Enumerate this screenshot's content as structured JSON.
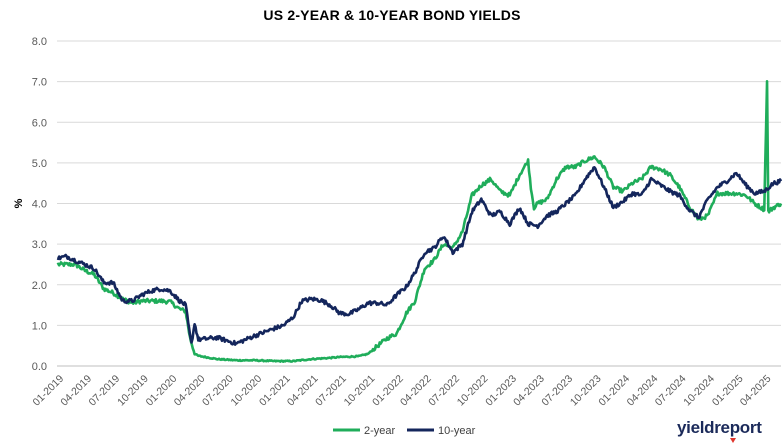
{
  "chart_data": {
    "type": "line",
    "title": "US 2-YEAR & 10-YEAR BOND YIELDS",
    "xlabel": "",
    "ylabel": "%",
    "ylim": [
      0,
      8
    ],
    "y_ticks": [
      "0.0",
      "1.0",
      "2.0",
      "3.0",
      "4.0",
      "5.0",
      "6.0",
      "7.0",
      "8.0"
    ],
    "x_ticks": [
      "01-2019",
      "04-2019",
      "07-2019",
      "10-2019",
      "01-2020",
      "04-2020",
      "07-2020",
      "10-2020",
      "01-2021",
      "04-2021",
      "07-2021",
      "10-2021",
      "01-2022",
      "04-2022",
      "07-2022",
      "10-2022",
      "01-2023",
      "04-2023",
      "07-2023",
      "10-2023",
      "01-2024",
      "04-2024",
      "07-2024",
      "10-2024",
      "01-2025",
      "04-2025"
    ],
    "x_range": [
      "2019-01",
      "2025-05"
    ],
    "grid": "horizontal",
    "legend_position": "bottom-center",
    "series": [
      {
        "name": "2-year",
        "color": "#1fad5a",
        "points": [
          [
            "2019-01-02",
            2.5
          ],
          [
            "2019-02-01",
            2.5
          ],
          [
            "2019-03-01",
            2.5
          ],
          [
            "2019-04-01",
            2.35
          ],
          [
            "2019-05-01",
            2.25
          ],
          [
            "2019-06-01",
            1.9
          ],
          [
            "2019-07-01",
            1.8
          ],
          [
            "2019-08-01",
            1.65
          ],
          [
            "2019-09-01",
            1.55
          ],
          [
            "2019-10-01",
            1.6
          ],
          [
            "2019-11-01",
            1.6
          ],
          [
            "2019-12-01",
            1.6
          ],
          [
            "2020-01-01",
            1.58
          ],
          [
            "2020-02-01",
            1.4
          ],
          [
            "2020-02-20",
            1.35
          ],
          [
            "2020-03-05",
            0.7
          ],
          [
            "2020-03-20",
            0.3
          ],
          [
            "2020-04-01",
            0.25
          ],
          [
            "2020-06-01",
            0.17
          ],
          [
            "2020-08-01",
            0.14
          ],
          [
            "2020-10-01",
            0.14
          ],
          [
            "2020-12-01",
            0.12
          ],
          [
            "2021-02-01",
            0.12
          ],
          [
            "2021-04-01",
            0.17
          ],
          [
            "2021-06-01",
            0.2
          ],
          [
            "2021-07-01",
            0.22
          ],
          [
            "2021-09-01",
            0.24
          ],
          [
            "2021-10-01",
            0.3
          ],
          [
            "2021-11-01",
            0.5
          ],
          [
            "2021-12-01",
            0.68
          ],
          [
            "2022-01-01",
            0.8
          ],
          [
            "2022-02-01",
            1.3
          ],
          [
            "2022-03-01",
            1.6
          ],
          [
            "2022-04-01",
            2.4
          ],
          [
            "2022-05-01",
            2.6
          ],
          [
            "2022-06-01",
            3.0
          ],
          [
            "2022-07-01",
            2.9
          ],
          [
            "2022-08-01",
            3.3
          ],
          [
            "2022-09-01",
            4.2
          ],
          [
            "2022-10-01",
            4.45
          ],
          [
            "2022-11-01",
            4.6
          ],
          [
            "2022-12-01",
            4.3
          ],
          [
            "2023-01-01",
            4.2
          ],
          [
            "2023-02-01",
            4.7
          ],
          [
            "2023-03-01",
            5.05
          ],
          [
            "2023-03-10",
            4.4
          ],
          [
            "2023-03-20",
            3.9
          ],
          [
            "2023-04-01",
            4.0
          ],
          [
            "2023-05-01",
            4.1
          ],
          [
            "2023-06-01",
            4.6
          ],
          [
            "2023-07-01",
            4.9
          ],
          [
            "2023-08-01",
            4.9
          ],
          [
            "2023-09-01",
            5.05
          ],
          [
            "2023-10-01",
            5.15
          ],
          [
            "2023-11-01",
            4.9
          ],
          [
            "2023-12-01",
            4.4
          ],
          [
            "2024-01-01",
            4.3
          ],
          [
            "2024-02-01",
            4.5
          ],
          [
            "2024-03-01",
            4.6
          ],
          [
            "2024-04-01",
            4.9
          ],
          [
            "2024-05-01",
            4.85
          ],
          [
            "2024-06-01",
            4.7
          ],
          [
            "2024-07-01",
            4.4
          ],
          [
            "2024-08-01",
            3.95
          ],
          [
            "2024-09-01",
            3.6
          ],
          [
            "2024-10-01",
            3.7
          ],
          [
            "2024-11-01",
            4.25
          ],
          [
            "2024-12-01",
            4.25
          ],
          [
            "2025-01-01",
            4.25
          ],
          [
            "2025-02-01",
            4.2
          ],
          [
            "2025-03-01",
            4.0
          ],
          [
            "2025-04-01",
            3.85
          ],
          [
            "2025-04-10",
            7.0
          ],
          [
            "2025-04-14",
            3.8
          ],
          [
            "2025-05-01",
            3.9
          ],
          [
            "2025-05-25",
            4.0
          ]
        ]
      },
      {
        "name": "10-year",
        "color": "#14265c",
        "points": [
          [
            "2019-01-02",
            2.65
          ],
          [
            "2019-02-01",
            2.7
          ],
          [
            "2019-03-01",
            2.6
          ],
          [
            "2019-04-01",
            2.5
          ],
          [
            "2019-05-01",
            2.4
          ],
          [
            "2019-06-01",
            2.05
          ],
          [
            "2019-07-01",
            2.05
          ],
          [
            "2019-08-01",
            1.6
          ],
          [
            "2019-09-01",
            1.6
          ],
          [
            "2019-10-01",
            1.75
          ],
          [
            "2019-11-01",
            1.85
          ],
          [
            "2019-12-01",
            1.9
          ],
          [
            "2020-01-01",
            1.85
          ],
          [
            "2020-02-01",
            1.6
          ],
          [
            "2020-02-20",
            1.5
          ],
          [
            "2020-03-05",
            0.75
          ],
          [
            "2020-03-10",
            0.55
          ],
          [
            "2020-03-20",
            1.05
          ],
          [
            "2020-04-01",
            0.65
          ],
          [
            "2020-06-01",
            0.7
          ],
          [
            "2020-08-01",
            0.55
          ],
          [
            "2020-10-01",
            0.75
          ],
          [
            "2020-12-01",
            0.92
          ],
          [
            "2021-01-01",
            1.0
          ],
          [
            "2021-02-01",
            1.2
          ],
          [
            "2021-03-01",
            1.6
          ],
          [
            "2021-04-01",
            1.65
          ],
          [
            "2021-05-01",
            1.62
          ],
          [
            "2021-06-01",
            1.5
          ],
          [
            "2021-07-01",
            1.3
          ],
          [
            "2021-08-01",
            1.28
          ],
          [
            "2021-09-01",
            1.4
          ],
          [
            "2021-10-01",
            1.55
          ],
          [
            "2021-11-01",
            1.55
          ],
          [
            "2021-12-01",
            1.5
          ],
          [
            "2022-01-01",
            1.75
          ],
          [
            "2022-02-01",
            1.95
          ],
          [
            "2022-03-01",
            2.3
          ],
          [
            "2022-04-01",
            2.8
          ],
          [
            "2022-05-01",
            2.9
          ],
          [
            "2022-06-01",
            3.2
          ],
          [
            "2022-07-01",
            2.8
          ],
          [
            "2022-08-01",
            3.0
          ],
          [
            "2022-09-01",
            3.8
          ],
          [
            "2022-10-01",
            4.1
          ],
          [
            "2022-11-01",
            3.7
          ],
          [
            "2022-12-01",
            3.8
          ],
          [
            "2023-01-01",
            3.5
          ],
          [
            "2023-02-01",
            3.9
          ],
          [
            "2023-03-01",
            3.5
          ],
          [
            "2023-04-01",
            3.45
          ],
          [
            "2023-05-01",
            3.7
          ],
          [
            "2023-06-01",
            3.8
          ],
          [
            "2023-07-01",
            4.0
          ],
          [
            "2023-08-01",
            4.2
          ],
          [
            "2023-09-01",
            4.6
          ],
          [
            "2023-10-01",
            4.9
          ],
          [
            "2023-11-01",
            4.4
          ],
          [
            "2023-12-01",
            3.9
          ],
          [
            "2024-01-01",
            4.05
          ],
          [
            "2024-02-01",
            4.25
          ],
          [
            "2024-03-01",
            4.2
          ],
          [
            "2024-04-01",
            4.6
          ],
          [
            "2024-05-01",
            4.45
          ],
          [
            "2024-06-01",
            4.3
          ],
          [
            "2024-07-01",
            4.2
          ],
          [
            "2024-08-01",
            3.85
          ],
          [
            "2024-09-01",
            3.65
          ],
          [
            "2024-10-01",
            4.1
          ],
          [
            "2024-11-01",
            4.4
          ],
          [
            "2024-12-01",
            4.55
          ],
          [
            "2025-01-01",
            4.75
          ],
          [
            "2025-02-01",
            4.45
          ],
          [
            "2025-03-01",
            4.25
          ],
          [
            "2025-04-01",
            4.3
          ],
          [
            "2025-05-01",
            4.5
          ],
          [
            "2025-05-25",
            4.55
          ]
        ]
      }
    ]
  },
  "brand": {
    "logo_text": "yieldreport"
  }
}
